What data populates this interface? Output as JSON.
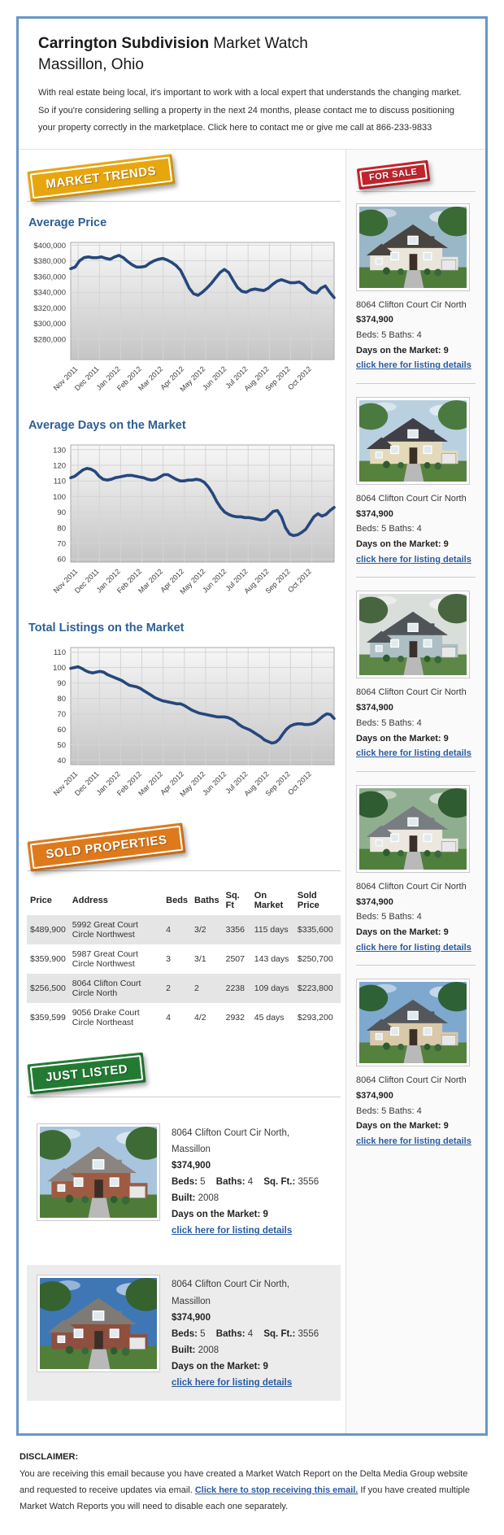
{
  "page": {
    "title_bold": "Carrington Subdivision",
    "title_rest": " Market Watch",
    "subtitle": "Massillon, Ohio",
    "intro": "With real estate being local, it's important to work with a local expert that understands the changing market. So if you're considering selling a property in the next 24 months, please contact me to discuss positioning your property correctly in the marketplace. Click here to contact me or give me call at 866-233-9833"
  },
  "colors": {
    "frame_blue": "#6897C8",
    "heading_blue": "#2d6095",
    "link_blue": "#2b5ca0",
    "line_navy": "#26477C",
    "badge_gold": "#E7A60E",
    "badge_red": "#C2242C",
    "badge_orange": "#DE7A1C",
    "badge_green": "#237B33"
  },
  "badges": {
    "market_trends": "MARKET TRENDS",
    "for_sale": "FOR SALE",
    "sold_properties": "SOLD PROPERTIES",
    "just_listed": "JUST LISTED"
  },
  "chart_data": [
    {
      "type": "line",
      "title": "Average Price",
      "x_labels": [
        "Nov 2011",
        "Dec 2011",
        "Jan 2012",
        "Feb 2012",
        "Mar 2012",
        "Apr 2012",
        "May 2012",
        "Jun 2012",
        "Jul 2012",
        "Aug 2012",
        "Sep 2012",
        "Oct 2012"
      ],
      "y_tick_labels": [
        "$400,000",
        "$380,000",
        "$360,000",
        "$340,000",
        "$320,000",
        "$300,000",
        "$280,000"
      ],
      "y_tick_values": [
        400000,
        380000,
        360000,
        340000,
        320000,
        300000,
        280000
      ],
      "ylim": [
        254000,
        403500
      ],
      "grid": true,
      "legend": "none",
      "values": [
        370000,
        372000,
        380000,
        384000,
        385000,
        384000,
        384000,
        385000,
        383000,
        382000,
        385000,
        387000,
        384000,
        379000,
        375000,
        372000,
        372000,
        373000,
        377000,
        380000,
        382000,
        383000,
        381000,
        378000,
        374000,
        368000,
        357000,
        345000,
        338000,
        336000,
        340000,
        345000,
        351000,
        358000,
        365000,
        369000,
        365000,
        355000,
        346000,
        341000,
        340000,
        343000,
        344000,
        343000,
        342000,
        345000,
        350000,
        354000,
        356000,
        354000,
        352000,
        352000,
        353000,
        350000,
        344000,
        340000,
        339000,
        345000,
        348000,
        340000,
        333000
      ]
    },
    {
      "type": "line",
      "title": "Average Days on the Market",
      "x_labels": [
        "Nov 2011",
        "Dec 2011",
        "Jan 2012",
        "Feb 2012",
        "Mar 2012",
        "Apr 2012",
        "May 2012",
        "Jun 2012",
        "Jul 2012",
        "Aug 2012",
        "Sep 2012",
        "Oct 2012"
      ],
      "y_tick_labels": [
        "130",
        "120",
        "110",
        "100",
        "90",
        "80",
        "70",
        "60"
      ],
      "y_tick_values": [
        130,
        120,
        110,
        100,
        90,
        80,
        70,
        60
      ],
      "ylim": [
        58,
        133
      ],
      "grid": true,
      "legend": "none",
      "values": [
        112,
        113,
        115,
        117,
        118,
        117.5,
        116,
        113,
        111,
        110.5,
        111,
        112,
        112.5,
        113,
        113.5,
        113.5,
        113,
        112.5,
        112,
        111,
        110.5,
        111,
        112.5,
        114,
        114,
        112.5,
        111,
        110,
        110,
        110.5,
        110.5,
        111,
        110.5,
        109,
        106,
        102,
        97,
        93,
        90,
        88.5,
        87.5,
        87,
        87,
        86.5,
        86.5,
        86,
        85.5,
        85,
        85.5,
        88,
        90.5,
        91,
        87,
        80,
        76,
        75,
        75.5,
        77,
        79,
        83,
        87,
        89,
        87.5,
        88.5,
        91,
        93
      ]
    },
    {
      "type": "line",
      "title": "Total Listings on the Market",
      "x_labels": [
        "Nov 2011",
        "Dec 2011",
        "Jan 2012",
        "Feb 2012",
        "Mar 2012",
        "Apr 2012",
        "May 2012",
        "Jun 2012",
        "Jul 2012",
        "Aug 2012",
        "Sep 2012",
        "Oct 2012"
      ],
      "y_tick_labels": [
        "110",
        "100",
        "90",
        "80",
        "70",
        "60",
        "50",
        "40"
      ],
      "y_tick_values": [
        110,
        100,
        90,
        80,
        70,
        60,
        50,
        40
      ],
      "ylim": [
        37,
        113
      ],
      "grid": true,
      "legend": "none",
      "values": [
        99.5,
        100,
        100.5,
        99.5,
        98,
        97,
        96.5,
        97,
        97.5,
        97,
        95.5,
        94.5,
        93.5,
        92.5,
        91.5,
        90,
        88.5,
        88,
        87.5,
        86.5,
        85,
        83.5,
        82,
        80.5,
        79.5,
        78.5,
        78,
        77.5,
        77,
        76.5,
        76.5,
        75.5,
        74,
        72.5,
        71.5,
        70.5,
        70,
        69.5,
        69,
        68.5,
        68,
        68,
        68,
        67.5,
        66.5,
        65,
        63,
        61.5,
        60.5,
        59.5,
        58,
        56.5,
        55,
        53,
        52,
        51,
        51.5,
        53.5,
        57,
        60,
        62,
        63,
        63.5,
        63.5,
        63,
        63,
        63.5,
        64.5,
        66.5,
        68.5,
        70,
        69.5,
        67
      ]
    }
  ],
  "for_sale": {
    "listings": [
      {
        "address": "8064 Clifton Court Cir North",
        "price": "$374,900",
        "beds_baths": "Beds: 5 Baths: 4",
        "days": "Days on the Market: 9",
        "link": "click here for listing details",
        "photo": {
          "sky": "#9ab7c8",
          "tree": "#3a6b34",
          "wall": "#e9e5da",
          "roof": "#4a4440",
          "grass": "#4e7d3a"
        }
      },
      {
        "address": "8064 Clifton Court Cir North",
        "price": "$374,900",
        "beds_baths": "Beds: 5 Baths: 4",
        "days": "Days on the Market: 9",
        "link": "click here for listing details",
        "photo": {
          "sky": "#b9d0e1",
          "tree": "#4a7a40",
          "wall": "#e4dab9",
          "roof": "#3f3f45",
          "grass": "#57823d"
        }
      },
      {
        "address": "8064 Clifton Court Cir North",
        "price": "$374,900",
        "beds_baths": "Beds: 5 Baths: 4",
        "days": "Days on the Market: 9",
        "link": "click here for listing details",
        "photo": {
          "sky": "#dadedb",
          "tree": "#47663f",
          "wall": "#aebfc4",
          "roof": "#4e5458",
          "grass": "#5d8746"
        }
      },
      {
        "address": "8064 Clifton Court Cir North",
        "price": "$374,900",
        "beds_baths": "Beds: 5 Baths: 4",
        "days": "Days on the Market: 9",
        "link": "click here for listing details",
        "photo": {
          "sky": "#8fae8f",
          "tree": "#2f5c30",
          "wall": "#ece7df",
          "roof": "#777d80",
          "grass": "#4f7f3c"
        }
      },
      {
        "address": "8064 Clifton Court Cir North",
        "price": "$374,900",
        "beds_baths": "Beds: 5 Baths: 4",
        "days": "Days on the Market: 9",
        "link": "click here for listing details",
        "photo": {
          "sky": "#7fa8cf",
          "tree": "#2f6136",
          "wall": "#d9c9a8",
          "roof": "#53575c",
          "grass": "#55813e"
        }
      }
    ]
  },
  "sold_table": {
    "headers": [
      "Price",
      "Address",
      "Beds",
      "Baths",
      "Sq. Ft",
      "On Market",
      "Sold Price"
    ],
    "rows": [
      [
        "$489,900",
        "5992 Great Court Circle Northwest",
        "4",
        "3/2",
        "3356",
        "115 days",
        "$335,600"
      ],
      [
        "$359,900",
        "5987 Great Court Circle Northwest",
        "3",
        "3/1",
        "2507",
        "143 days",
        "$250,700"
      ],
      [
        "$256,500",
        "8064 Clifton Court Circle North",
        "2",
        "2",
        "2238",
        "109 days",
        "$223,800"
      ],
      [
        "$359,599",
        "9056 Drake Court Circle Northeast",
        "4",
        "4/2",
        "2932",
        "45 days",
        "$293,200"
      ]
    ]
  },
  "just_listed": {
    "items": [
      {
        "address": "8064 Clifton Court Cir North, Massillon",
        "price": "$374,900",
        "specs": [
          {
            "label": "Beds:",
            "value": "5"
          },
          {
            "label": "Baths:",
            "value": "4"
          },
          {
            "label": "Sq. Ft.:",
            "value": "3556"
          },
          {
            "label": "Built:",
            "value": "2008"
          }
        ],
        "days": "Days on the Market: 9",
        "link": "click here for listing details",
        "photo": {
          "sky": "#a9c5de",
          "tree": "#3c6b35",
          "wall": "#9e5b42",
          "roof": "#8a8580",
          "grass": "#4e7c38"
        }
      },
      {
        "address": "8064 Clifton Court Cir North, Massillon",
        "price": "$374,900",
        "specs": [
          {
            "label": "Beds:",
            "value": "5"
          },
          {
            "label": "Baths:",
            "value": "4"
          },
          {
            "label": "Sq. Ft.:",
            "value": "3556"
          },
          {
            "label": "Built:",
            "value": "2008"
          }
        ],
        "days": "Days on the Market: 9",
        "link": "click here for listing details",
        "photo": {
          "sky": "#3f77b5",
          "tree": "#35622f",
          "wall": "#8e4f3e",
          "roof": "#7e7a74",
          "grass": "#517f3a"
        }
      }
    ]
  },
  "disclaimer": {
    "heading": "DISCLAIMER:",
    "before_link": "You are receiving this email because you have created a Market Watch Report on the Delta Media Group website and requested to receive updates via email. ",
    "link": "Click here to stop receiving this email.",
    "after_link": " If you have created multiple Market Watch Reports you will need to disable each one separately."
  }
}
